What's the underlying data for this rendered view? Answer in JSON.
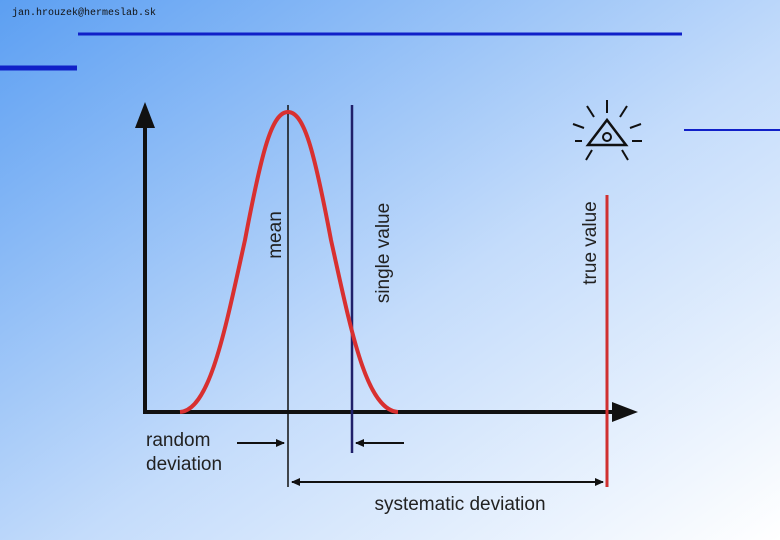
{
  "header": {
    "email": "jan.hrouzek@hermeslab.sk"
  },
  "labels": {
    "mean": "mean",
    "single_value": "single value",
    "true_value": "true value",
    "random_deviation": [
      "random",
      "deviation"
    ],
    "systematic_deviation": "systematic deviation"
  }
}
